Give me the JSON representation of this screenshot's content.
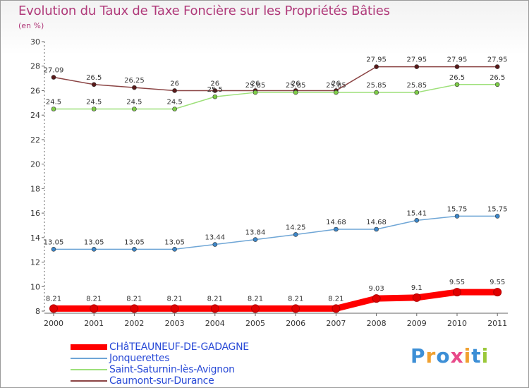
{
  "header": {
    "title": "Evolution du Taux de Taxe Foncière sur les Propriétés Bâties",
    "unit": "(en %)"
  },
  "chart_data": {
    "type": "line",
    "categories": [
      "2000",
      "2001",
      "2002",
      "2003",
      "2004",
      "2005",
      "2006",
      "2007",
      "2008",
      "2009",
      "2010",
      "2011"
    ],
    "ylim": [
      8,
      30
    ],
    "yticks": [
      8,
      10,
      12,
      14,
      16,
      18,
      20,
      22,
      24,
      26,
      28,
      30
    ],
    "grid": false,
    "legend_position": "bottom",
    "series": [
      {
        "name": "CHâTEAUNEUF-DE-GADAGNE",
        "color": "#ff0000",
        "thick": true,
        "values": [
          8.21,
          8.21,
          8.21,
          8.21,
          8.21,
          8.21,
          8.21,
          8.21,
          9.03,
          9.1,
          9.55,
          9.55
        ],
        "labels": [
          "8.21",
          "8.21",
          "8.21",
          "8.21",
          "8.21",
          "8.21",
          "8.21",
          "8.21",
          "9.03",
          "9.1",
          "9.55",
          "9.55"
        ]
      },
      {
        "name": "Jonquerettes",
        "color": "#6fa6d6",
        "marker": "#3d87c9",
        "values": [
          13.05,
          13.05,
          13.05,
          13.05,
          13.44,
          13.84,
          14.25,
          14.68,
          14.68,
          15.41,
          15.75,
          15.75
        ],
        "labels": [
          "13.05",
          "13.05",
          "13.05",
          "13.05",
          "13.44",
          "13.84",
          "14.25",
          "14.68",
          "14.68",
          "15.41",
          "15.75",
          "15.75"
        ]
      },
      {
        "name": "Saint-Saturnin-lès-Avignon",
        "color": "#9ee07a",
        "marker": "#7dcc46",
        "values": [
          24.5,
          24.5,
          24.5,
          24.5,
          25.5,
          25.85,
          25.85,
          25.85,
          25.85,
          25.85,
          26.5,
          26.5
        ],
        "labels": [
          "24.5",
          "24.5",
          "24.5",
          "24.5",
          "25.5",
          "25.85",
          "25.85",
          "25.85",
          "25.85",
          "25.85",
          "26.5",
          "26.5"
        ]
      },
      {
        "name": "Caumont-sur-Durance",
        "color": "#8b4444",
        "marker": "#5a1a1a",
        "values": [
          27.09,
          26.5,
          26.25,
          26,
          26,
          26,
          26,
          26,
          27.95,
          27.95,
          27.95,
          27.95
        ],
        "labels": [
          "27.09",
          "26.5",
          "26.25",
          "26",
          "26",
          "26",
          "26",
          "26",
          "27.95",
          "27.95",
          "27.95",
          "27.95"
        ]
      }
    ]
  },
  "legend": {
    "items": [
      {
        "label": "CHâTEAUNEUF-DE-GADAGNE",
        "color": "#ff0000"
      },
      {
        "label": "Jonquerettes",
        "color": "#6fa6d6"
      },
      {
        "label": "Saint-Saturnin-lès-Avignon",
        "color": "#9ee07a"
      },
      {
        "label": "Caumont-sur-Durance",
        "color": "#8b4444"
      }
    ]
  },
  "logo": {
    "text": "Proxiti",
    "colors": [
      "#3d8fd6",
      "#f0a030",
      "#3d8fd6",
      "#e84a8a",
      "#f0a030",
      "#3d8fd6",
      "#9bc83a"
    ]
  }
}
